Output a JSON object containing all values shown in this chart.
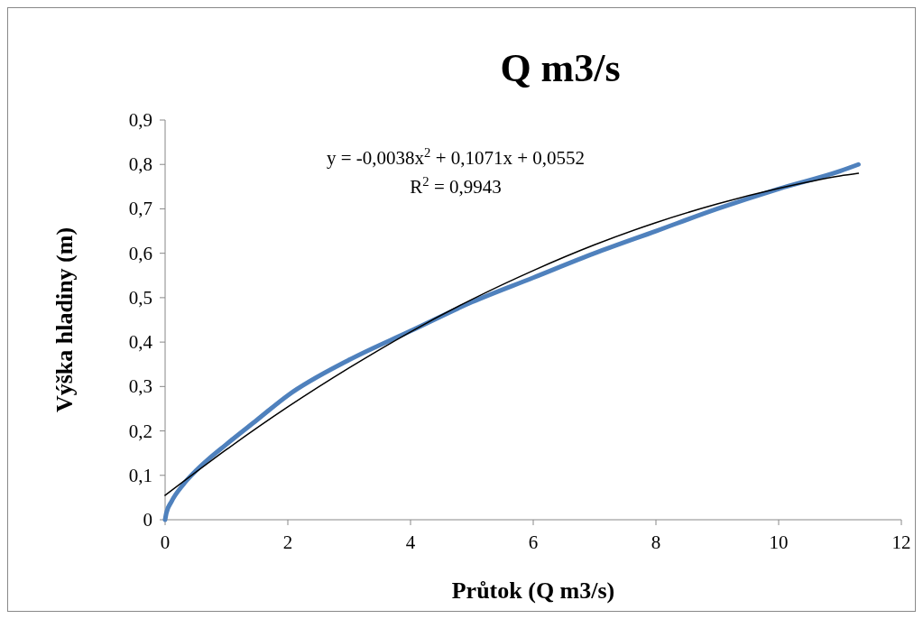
{
  "chart_data": {
    "type": "line",
    "title": "Q m3/s",
    "xlabel": "Průtok (Q m3/s)",
    "ylabel": "Výška hladiny (m)",
    "xlim": [
      0,
      12
    ],
    "xticks": [
      0,
      2,
      4,
      6,
      8,
      10,
      12
    ],
    "ylim": [
      0,
      0.9
    ],
    "yticks": [
      0,
      {
        "value": 0.1,
        "label": "0,1"
      },
      {
        "value": 0.2,
        "label": "0,2"
      },
      {
        "value": 0.3,
        "label": "0,3"
      },
      {
        "value": 0.4,
        "label": "0,4"
      },
      {
        "value": 0.5,
        "label": "0,5"
      },
      {
        "value": 0.6,
        "label": "0,6"
      },
      {
        "value": 0.7,
        "label": "0,7"
      },
      {
        "value": 0.8,
        "label": "0,8"
      },
      {
        "value": 0.9,
        "label": "0,9"
      }
    ],
    "grid": false,
    "marker": "none",
    "line_style": "solid",
    "annotations": [
      "y = -0,0038x$^{2}$ + 0,1071x + 0,0552",
      "R$^{2}$ = 0,9943"
    ],
    "series": [
      {
        "color": "#4f81bd",
        "x": [
          0,
          0.02,
          0.1,
          0.3,
          0.5,
          1,
          1.5,
          2,
          3,
          4,
          5,
          6,
          7,
          8,
          9,
          10,
          11,
          11.3
        ],
        "values": [
          0,
          0.015,
          0.04,
          0.08,
          0.11,
          0.17,
          0.225,
          0.28,
          0.36,
          0.425,
          0.49,
          0.545,
          0.6,
          0.65,
          0.7,
          0.745,
          0.785,
          0.8
        ]
      },
      {
        "type": "line",
        "color": "#000000",
        "x": [
          0,
          1,
          2,
          3,
          4,
          5,
          6,
          7,
          8,
          9,
          10,
          11,
          11.3
        ],
        "values": [
          0.055,
          0.158,
          0.254,
          0.342,
          0.423,
          0.496,
          0.561,
          0.619,
          0.669,
          0.711,
          0.746,
          0.774,
          0.78
        ]
      }
    ]
  }
}
